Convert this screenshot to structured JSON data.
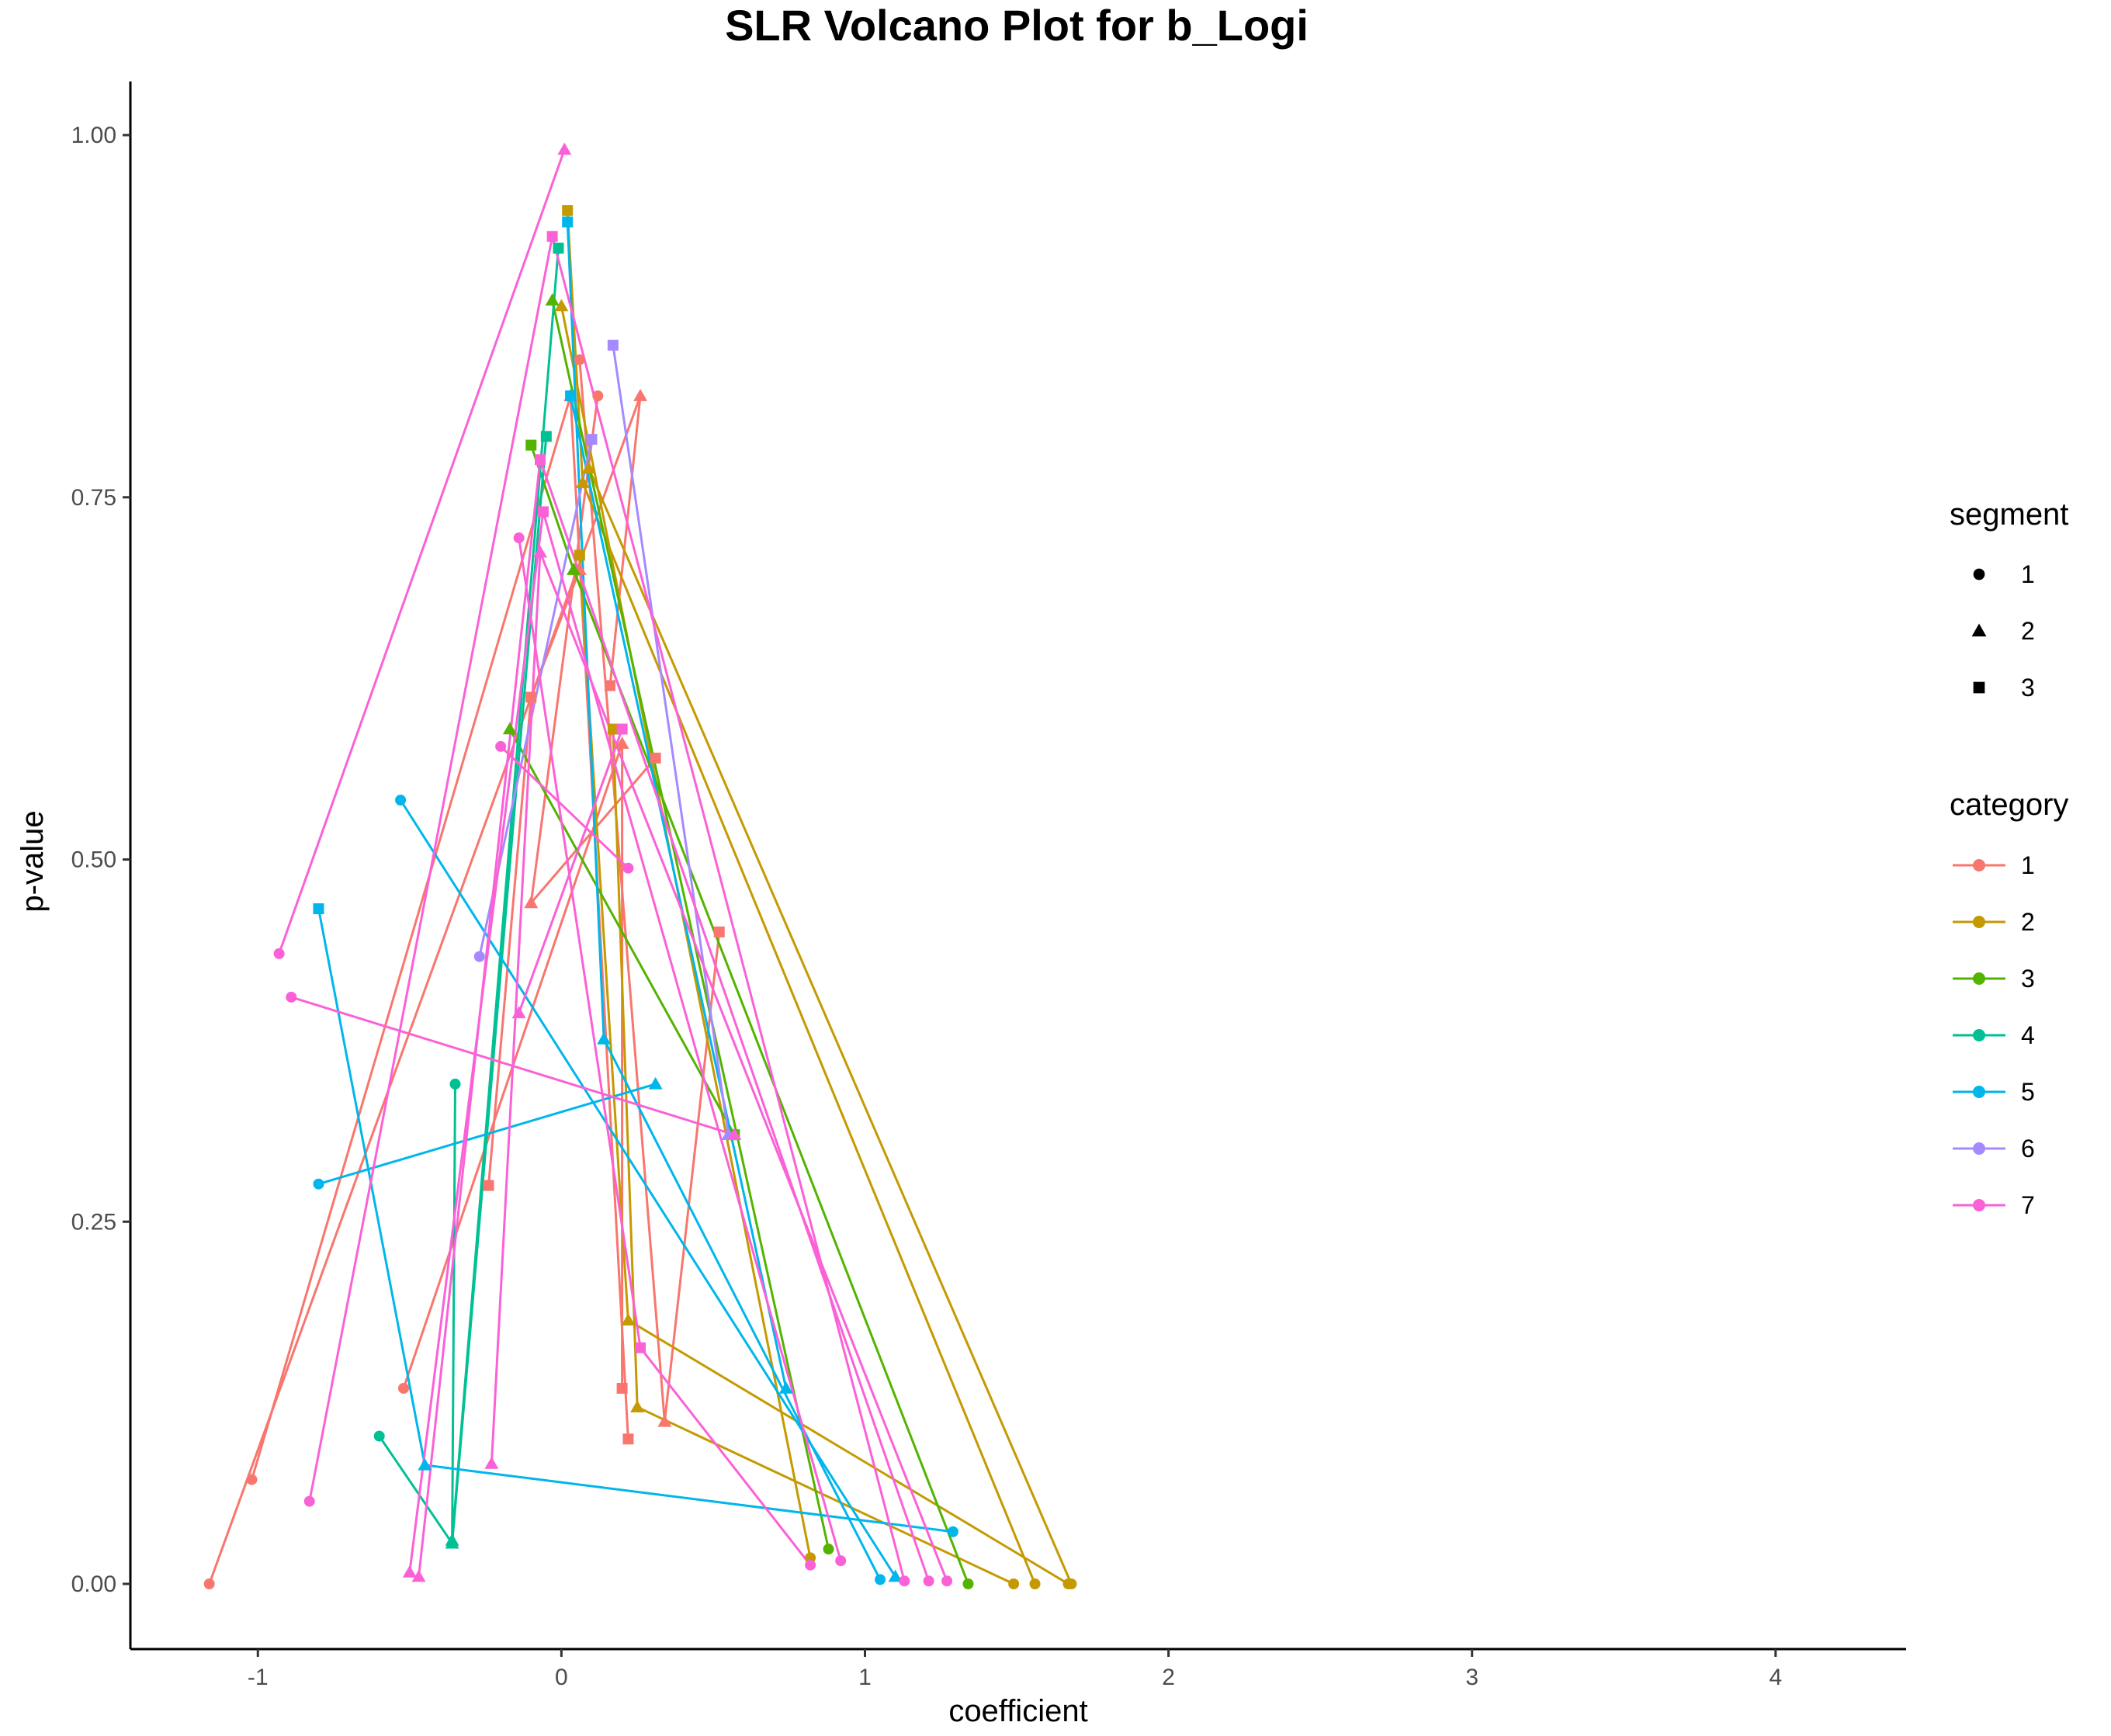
{
  "chart_data": {
    "type": "line",
    "title": "SLR Volcano Plot for b_Logi",
    "xlabel": "coefficient",
    "ylabel": "p-value",
    "xlim": [
      -1.42,
      4.43
    ],
    "ylim": [
      -0.045,
      1.037
    ],
    "x_ticks": [
      -1,
      0,
      1,
      2,
      3,
      4
    ],
    "x_tick_labels": [
      "-1",
      "0",
      "1",
      "2",
      "3",
      "4"
    ],
    "y_ticks": [
      0,
      0.25,
      0.5,
      0.75,
      1
    ],
    "y_tick_labels": [
      "0.00",
      "0.25",
      "0.50",
      "0.75",
      "1.00"
    ],
    "grid": false,
    "legend_position": "right",
    "legend_shape": {
      "title": "segment",
      "entries": [
        {
          "label": "1",
          "shape": "circle"
        },
        {
          "label": "2",
          "shape": "triangle"
        },
        {
          "label": "3",
          "shape": "square"
        }
      ]
    },
    "legend_color": {
      "title": "category",
      "entries": [
        {
          "label": "1",
          "color": "#F8766D"
        },
        {
          "label": "2",
          "color": "#C49A00"
        },
        {
          "label": "3",
          "color": "#53B400"
        },
        {
          "label": "4",
          "color": "#00C094"
        },
        {
          "label": "5",
          "color": "#00B6EB"
        },
        {
          "label": "6",
          "color": "#A58AFF"
        },
        {
          "label": "7",
          "color": "#FB61D7"
        }
      ]
    },
    "series": [
      {
        "category": "1",
        "color": "#F8766D",
        "points": [
          {
            "x": -1.16,
            "y": 0.0,
            "segment": 1
          },
          {
            "x": 0.26,
            "y": 0.82,
            "segment": 2
          },
          {
            "x": 0.16,
            "y": 0.62,
            "segment": 3
          }
        ]
      },
      {
        "category": "1",
        "color": "#F8766D",
        "points": [
          {
            "x": -0.52,
            "y": 0.135,
            "segment": 1
          },
          {
            "x": 0.2,
            "y": 0.58,
            "segment": 2
          },
          {
            "x": 0.2,
            "y": 0.135,
            "segment": 3
          }
        ]
      },
      {
        "category": "1",
        "color": "#F8766D",
        "points": [
          {
            "x": -1.02,
            "y": 0.072,
            "segment": 1
          },
          {
            "x": 0.03,
            "y": 0.82,
            "segment": 2
          },
          {
            "x": 0.22,
            "y": 0.1,
            "segment": 3
          }
        ]
      },
      {
        "category": "1",
        "color": "#F8766D",
        "points": [
          {
            "x": 0.12,
            "y": 0.82,
            "segment": 1
          },
          {
            "x": -0.1,
            "y": 0.47,
            "segment": 2
          },
          {
            "x": 0.31,
            "y": 0.57,
            "segment": 3
          }
        ]
      },
      {
        "category": "1",
        "color": "#F8766D",
        "points": [
          {
            "x": 0.06,
            "y": 0.845,
            "segment": 1
          },
          {
            "x": 0.34,
            "y": 0.112,
            "segment": 2
          },
          {
            "x": 0.52,
            "y": 0.45,
            "segment": 3
          }
        ]
      },
      {
        "category": "1",
        "color": "#F8766D",
        "points": [
          {
            "x": -0.24,
            "y": 0.275,
            "segment": 3
          },
          {
            "x": -0.1,
            "y": 0.612,
            "segment": 3
          },
          {
            "x": 0.06,
            "y": 0.7,
            "segment": 2
          }
        ]
      },
      {
        "category": "2",
        "color": "#C49A00",
        "points": [
          {
            "x": 0.02,
            "y": 0.948,
            "segment": 3
          },
          {
            "x": 0.07,
            "y": 0.76,
            "segment": 2
          },
          {
            "x": 1.56,
            "y": 0.0,
            "segment": 1
          }
        ]
      },
      {
        "category": "2",
        "color": "#C49A00",
        "points": [
          {
            "x": 0.06,
            "y": 0.71,
            "segment": 3
          },
          {
            "x": 0.22,
            "y": 0.182,
            "segment": 2
          },
          {
            "x": 1.67,
            "y": 0.0,
            "segment": 1
          }
        ]
      },
      {
        "category": "2",
        "color": "#C49A00",
        "points": [
          {
            "x": 0.17,
            "y": 0.59,
            "segment": 3
          },
          {
            "x": 0.25,
            "y": 0.122,
            "segment": 2
          },
          {
            "x": 1.49,
            "y": 0.0,
            "segment": 1
          }
        ]
      },
      {
        "category": "2",
        "color": "#C49A00",
        "points": [
          {
            "x": 0.0,
            "y": 0.882,
            "segment": 2
          },
          {
            "x": 0.82,
            "y": 0.018,
            "segment": 1
          }
        ]
      },
      {
        "category": "2",
        "color": "#C49A00",
        "points": [
          {
            "x": 0.09,
            "y": 0.77,
            "segment": 2
          },
          {
            "x": 1.68,
            "y": 0.0,
            "segment": 1
          }
        ]
      },
      {
        "category": "3",
        "color": "#53B400",
        "points": [
          {
            "x": -0.1,
            "y": 0.786,
            "segment": 3
          },
          {
            "x": 0.04,
            "y": 0.7,
            "segment": 2
          },
          {
            "x": 1.34,
            "y": 0.0,
            "segment": 1
          }
        ]
      },
      {
        "category": "3",
        "color": "#53B400",
        "points": [
          {
            "x": -0.03,
            "y": 0.886,
            "segment": 2
          },
          {
            "x": 0.88,
            "y": 0.024,
            "segment": 1
          }
        ]
      },
      {
        "category": "3",
        "color": "#53B400",
        "points": [
          {
            "x": -0.17,
            "y": 0.59,
            "segment": 2
          },
          {
            "x": 0.57,
            "y": 0.31,
            "segment": 3
          }
        ]
      },
      {
        "category": "4",
        "color": "#00C094",
        "points": [
          {
            "x": -0.6,
            "y": 0.102,
            "segment": 1
          },
          {
            "x": -0.36,
            "y": 0.028,
            "segment": 2
          },
          {
            "x": -0.05,
            "y": 0.792,
            "segment": 3
          }
        ]
      },
      {
        "category": "4",
        "color": "#00C094",
        "points": [
          {
            "x": -0.35,
            "y": 0.345,
            "segment": 1
          },
          {
            "x": -0.36,
            "y": 0.03,
            "segment": 2
          },
          {
            "x": -0.01,
            "y": 0.922,
            "segment": 3
          }
        ]
      },
      {
        "category": "5",
        "color": "#00B6EB",
        "points": [
          {
            "x": -0.8,
            "y": 0.466,
            "segment": 3
          },
          {
            "x": -0.45,
            "y": 0.082,
            "segment": 2
          },
          {
            "x": 1.29,
            "y": 0.036,
            "segment": 1
          }
        ]
      },
      {
        "category": "5",
        "color": "#00B6EB",
        "points": [
          {
            "x": -0.53,
            "y": 0.541,
            "segment": 1
          },
          {
            "x": 1.1,
            "y": 0.005,
            "segment": 2
          }
        ]
      },
      {
        "category": "5",
        "color": "#00B6EB",
        "points": [
          {
            "x": -0.8,
            "y": 0.276,
            "segment": 1
          },
          {
            "x": 0.31,
            "y": 0.345,
            "segment": 2
          }
        ]
      },
      {
        "category": "5",
        "color": "#00B6EB",
        "points": [
          {
            "x": 0.02,
            "y": 0.94,
            "segment": 3
          },
          {
            "x": 0.14,
            "y": 0.376,
            "segment": 2
          },
          {
            "x": 1.05,
            "y": 0.003,
            "segment": 1
          }
        ]
      },
      {
        "category": "5",
        "color": "#00B6EB",
        "points": [
          {
            "x": 0.03,
            "y": 0.82,
            "segment": 3
          },
          {
            "x": 0.74,
            "y": 0.135,
            "segment": 2
          }
        ]
      },
      {
        "category": "6",
        "color": "#A58AFF",
        "points": [
          {
            "x": 0.17,
            "y": 0.855,
            "segment": 3
          },
          {
            "x": 0.55,
            "y": 0.31,
            "segment": 2
          }
        ]
      },
      {
        "category": "6",
        "color": "#A58AFF",
        "points": [
          {
            "x": 0.1,
            "y": 0.79,
            "segment": 3
          },
          {
            "x": -0.27,
            "y": 0.433,
            "segment": 1
          }
        ]
      },
      {
        "category": "7",
        "color": "#FB61D7",
        "points": [
          {
            "x": -0.93,
            "y": 0.435,
            "segment": 1
          },
          {
            "x": 0.01,
            "y": 0.99,
            "segment": 2
          }
        ]
      },
      {
        "category": "7",
        "color": "#FB61D7",
        "points": [
          {
            "x": -0.89,
            "y": 0.405,
            "segment": 1
          },
          {
            "x": 0.57,
            "y": 0.31,
            "segment": 2
          }
        ]
      },
      {
        "category": "7",
        "color": "#FB61D7",
        "points": [
          {
            "x": -0.83,
            "y": 0.057,
            "segment": 1
          },
          {
            "x": -0.03,
            "y": 0.93,
            "segment": 3
          },
          {
            "x": 1.13,
            "y": 0.002,
            "segment": 1
          }
        ]
      },
      {
        "category": "7",
        "color": "#FB61D7",
        "points": [
          {
            "x": -0.5,
            "y": 0.008,
            "segment": 2
          },
          {
            "x": -0.06,
            "y": 0.74,
            "segment": 3
          },
          {
            "x": 0.92,
            "y": 0.016,
            "segment": 1
          }
        ]
      },
      {
        "category": "7",
        "color": "#FB61D7",
        "points": [
          {
            "x": -0.47,
            "y": 0.005,
            "segment": 2
          },
          {
            "x": -0.07,
            "y": 0.776,
            "segment": 3
          },
          {
            "x": 1.21,
            "y": 0.002,
            "segment": 1
          }
        ]
      },
      {
        "category": "7",
        "color": "#FB61D7",
        "points": [
          {
            "x": -0.23,
            "y": 0.083,
            "segment": 2
          },
          {
            "x": -0.07,
            "y": 0.712,
            "segment": 2
          },
          {
            "x": 1.27,
            "y": 0.002,
            "segment": 1
          }
        ]
      },
      {
        "category": "7",
        "color": "#FB61D7",
        "points": [
          {
            "x": -0.14,
            "y": 0.722,
            "segment": 1
          },
          {
            "x": 0.26,
            "y": 0.163,
            "segment": 3
          },
          {
            "x": 0.82,
            "y": 0.013,
            "segment": 1
          }
        ]
      },
      {
        "category": "7",
        "color": "#FB61D7",
        "points": [
          {
            "x": -0.14,
            "y": 0.394,
            "segment": 2
          },
          {
            "x": 0.2,
            "y": 0.59,
            "segment": 3
          }
        ]
      },
      {
        "category": "7",
        "color": "#FB61D7",
        "points": [
          {
            "x": -0.2,
            "y": 0.578,
            "segment": 1
          },
          {
            "x": 0.22,
            "y": 0.494,
            "segment": 1
          }
        ]
      }
    ]
  }
}
